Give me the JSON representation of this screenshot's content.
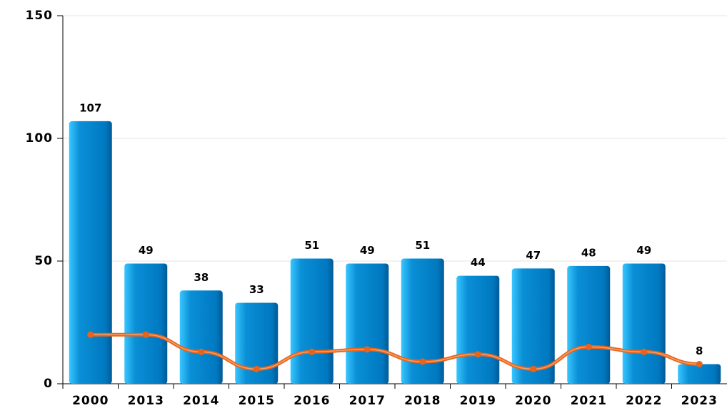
{
  "chart_data": {
    "type": "bar",
    "categories": [
      "2000",
      "2013",
      "2014",
      "2015",
      "2016",
      "2017",
      "2018",
      "2019",
      "2020",
      "2021",
      "2022",
      "2023"
    ],
    "series": [
      {
        "type": "bar",
        "color": "#0a8fd6",
        "values": [
          107,
          49,
          38,
          33,
          51,
          49,
          51,
          44,
          47,
          48,
          49,
          8
        ]
      },
      {
        "type": "line",
        "color": "#e8641b",
        "values": [
          20,
          20,
          13,
          6,
          13,
          14,
          9,
          12,
          6,
          15,
          13,
          8
        ]
      }
    ],
    "ylim": [
      0,
      150
    ],
    "yticks": [
      0,
      50,
      100,
      150
    ],
    "grid": true
  }
}
